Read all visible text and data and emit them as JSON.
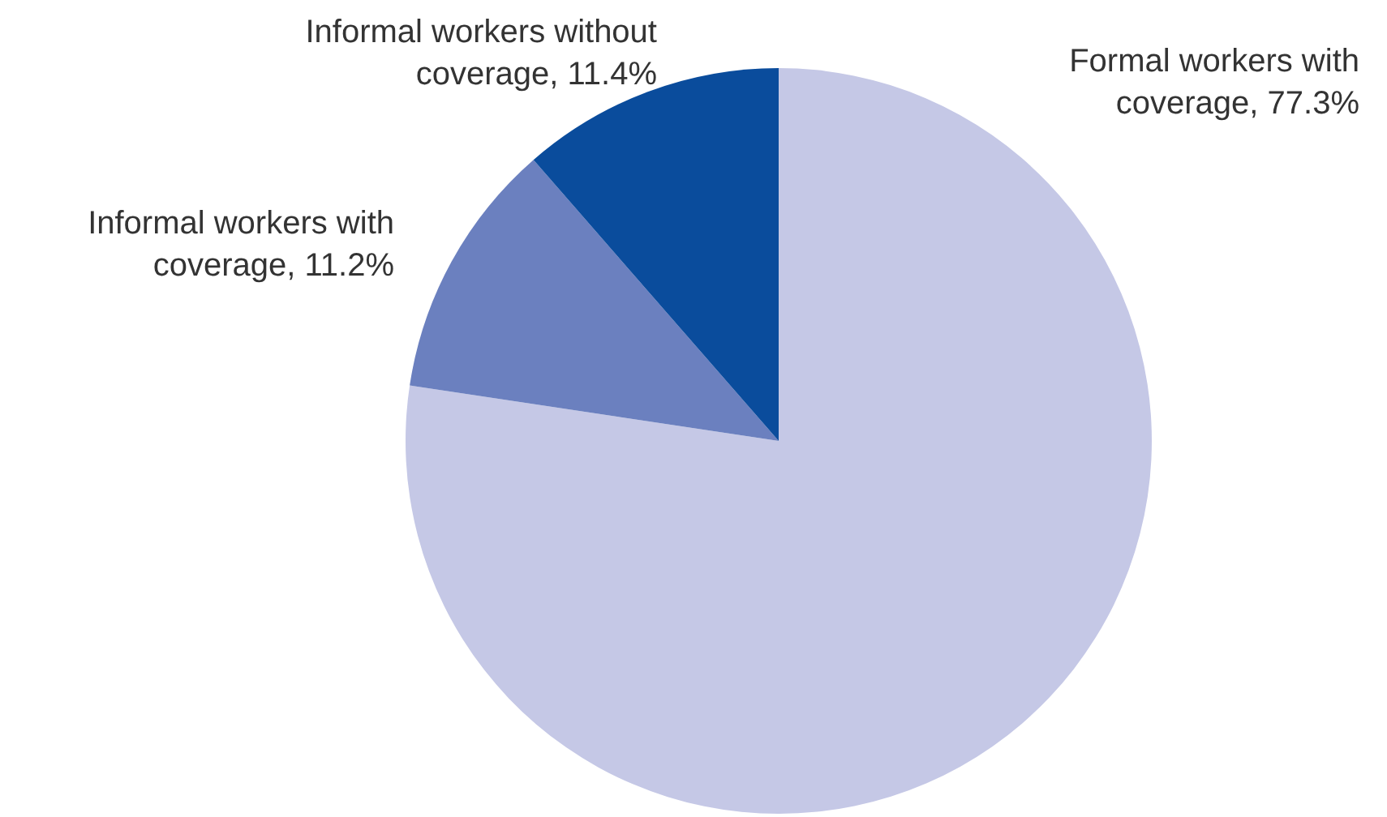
{
  "chart_data": {
    "type": "pie",
    "categories": [
      "Formal workers with coverage",
      "Informal workers with coverage",
      "Informal workers without coverage"
    ],
    "values": [
      77.3,
      11.2,
      11.4
    ],
    "value_labels": [
      "77.3%",
      "11.2%",
      "11.4%"
    ],
    "colors": [
      "#c5c8e6",
      "#6b80bf",
      "#0a4c9c"
    ]
  }
}
